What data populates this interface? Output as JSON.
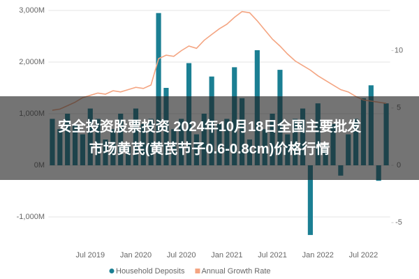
{
  "chart_data": {
    "type": "bar",
    "categories": [
      null,
      null,
      null,
      null,
      null,
      "Jul 2019",
      null,
      null,
      null,
      null,
      null,
      "Jan 2020",
      null,
      null,
      null,
      null,
      null,
      "Jul 2020",
      null,
      null,
      null,
      null,
      null,
      "Jan 2021",
      null,
      null,
      null,
      null,
      null,
      "Jul 2021",
      null,
      null,
      null,
      null,
      null,
      "Jan 2022",
      null,
      null,
      null,
      null,
      null,
      "Jul 2022",
      null,
      null,
      null
    ],
    "series": [
      {
        "name": "Household Deposits",
        "type": "bar",
        "color": "#1b7f93",
        "values": [
          900,
          700,
          1000,
          800,
          600,
          1100,
          900,
          500,
          700,
          1000,
          400,
          1100,
          800,
          900,
          2950,
          1500,
          700,
          900,
          1980,
          600,
          1000,
          1720,
          800,
          900,
          1900,
          1300,
          500,
          2230,
          700,
          1000,
          1850,
          600,
          900,
          1100,
          -1350,
          1200,
          400,
          800,
          -200,
          600,
          900,
          1300,
          1550,
          -300,
          1200
        ]
      },
      {
        "name": "Annual Growth Rate",
        "type": "line",
        "axis": "y2",
        "color": "#f4a582",
        "values": [
          4.8,
          4.9,
          5.2,
          5.5,
          5.9,
          6.1,
          6.3,
          6.2,
          6.5,
          6.4,
          6.6,
          6.8,
          6.7,
          7.0,
          9.3,
          9.6,
          9.5,
          10.0,
          10.4,
          10.2,
          10.9,
          11.4,
          11.9,
          12.3,
          12.9,
          13.4,
          13.3,
          12.6,
          11.8,
          11.0,
          10.4,
          9.7,
          9.1,
          8.7,
          8.3,
          7.8,
          7.4,
          7.0,
          6.6,
          6.4,
          6.0,
          5.7,
          5.6,
          5.5,
          5.4
        ]
      }
    ],
    "ylim": [
      -1400,
      3000
    ],
    "yticks": [
      {
        "value": -1000,
        "label": "-1,000M"
      },
      {
        "value": 0,
        "label": "0M"
      },
      {
        "value": 1000,
        "label": "1,000M"
      },
      {
        "value": 2000,
        "label": "2,000M"
      },
      {
        "value": 3000,
        "label": "3,000M"
      }
    ],
    "y2lim": [
      -6.3,
      13.5
    ],
    "y2ticks": [
      -5,
      0,
      5,
      10
    ],
    "grid": true,
    "legend": "bottom"
  },
  "banner": {
    "lines": [
      "安全投资股票投资 2024年10月18日全国主要批发",
      "市场黄芪(黄芪节子0.6-0.8cm)价格行情"
    ]
  }
}
